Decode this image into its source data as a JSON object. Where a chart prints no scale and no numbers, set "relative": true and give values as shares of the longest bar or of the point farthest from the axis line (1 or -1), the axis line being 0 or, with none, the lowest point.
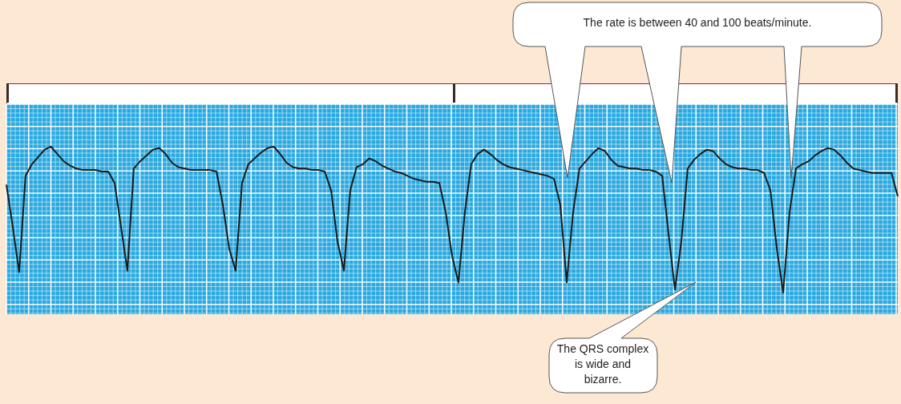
{
  "chart_data": {
    "type": "line",
    "relative": true,
    "grid": true,
    "marker": "none",
    "color": "#1a1a1a",
    "categories": [
      null,
      null,
      null,
      null,
      null,
      null,
      null,
      null,
      null,
      null,
      null,
      null,
      null,
      null,
      null,
      null,
      null,
      null,
      null,
      null,
      null,
      null,
      null,
      null,
      null,
      null,
      null,
      null,
      null,
      null,
      null,
      null,
      null,
      null,
      null,
      null,
      null,
      null,
      null,
      null,
      null,
      null,
      null,
      null,
      null,
      null,
      null,
      null,
      null,
      null,
      null,
      null,
      null,
      null,
      null,
      null,
      null,
      null,
      null,
      null,
      null,
      null,
      null,
      null,
      null,
      null,
      null,
      null,
      null,
      null,
      null,
      null,
      null,
      null,
      null,
      null,
      null,
      null,
      null,
      null,
      null,
      null,
      null,
      null,
      null,
      null,
      null,
      null,
      null,
      null,
      null,
      null,
      null,
      null,
      null,
      null,
      null,
      null,
      null,
      null,
      null,
      null,
      null,
      null,
      null,
      null,
      null,
      null,
      null,
      null,
      null,
      null,
      null,
      null,
      null,
      null,
      null,
      null,
      null,
      null,
      null,
      null,
      null,
      null,
      null,
      null,
      null,
      null,
      null,
      null,
      null,
      null,
      null,
      null,
      null,
      null,
      null,
      null,
      null,
      null,
      null
    ],
    "values": [
      0.74,
      0.45,
      0.14,
      0.8,
      0.88,
      0.93,
      0.98,
      1.0,
      0.95,
      0.9,
      0.87,
      0.85,
      0.84,
      0.84,
      0.84,
      0.83,
      0.83,
      0.75,
      0.45,
      0.15,
      0.85,
      0.9,
      0.94,
      0.98,
      0.99,
      0.95,
      0.89,
      0.86,
      0.85,
      0.84,
      0.84,
      0.84,
      0.84,
      0.83,
      0.6,
      0.3,
      0.15,
      0.75,
      0.88,
      0.92,
      0.96,
      0.99,
      1.0,
      0.95,
      0.89,
      0.86,
      0.85,
      0.85,
      0.84,
      0.84,
      0.83,
      0.7,
      0.35,
      0.15,
      0.7,
      0.86,
      0.88,
      0.92,
      0.9,
      0.87,
      0.85,
      0.83,
      0.82,
      0.8,
      0.78,
      0.77,
      0.76,
      0.76,
      0.75,
      0.55,
      0.25,
      0.07,
      0.55,
      0.88,
      0.95,
      0.98,
      0.95,
      0.91,
      0.88,
      0.86,
      0.85,
      0.84,
      0.83,
      0.82,
      0.81,
      0.8,
      0.78,
      0.6,
      0.07,
      0.55,
      0.85,
      0.9,
      0.95,
      0.99,
      0.97,
      0.91,
      0.87,
      0.86,
      0.85,
      0.85,
      0.84,
      0.84,
      0.83,
      0.8,
      0.4,
      0.02,
      0.35,
      0.85,
      0.91,
      0.95,
      0.98,
      0.97,
      0.92,
      0.88,
      0.86,
      0.85,
      0.85,
      0.84,
      0.84,
      0.82,
      0.7,
      0.3,
      0.0,
      0.55,
      0.85,
      0.88,
      0.9,
      0.94,
      0.97,
      0.99,
      0.98,
      0.94,
      0.89,
      0.85,
      0.84,
      0.83,
      0.82,
      0.82,
      0.82,
      0.82,
      0.66
    ],
    "annotations": [
      "The rate is between 40 and 100 beats/minute.",
      "The QRS complex is wide and bizarre."
    ]
  }
}
